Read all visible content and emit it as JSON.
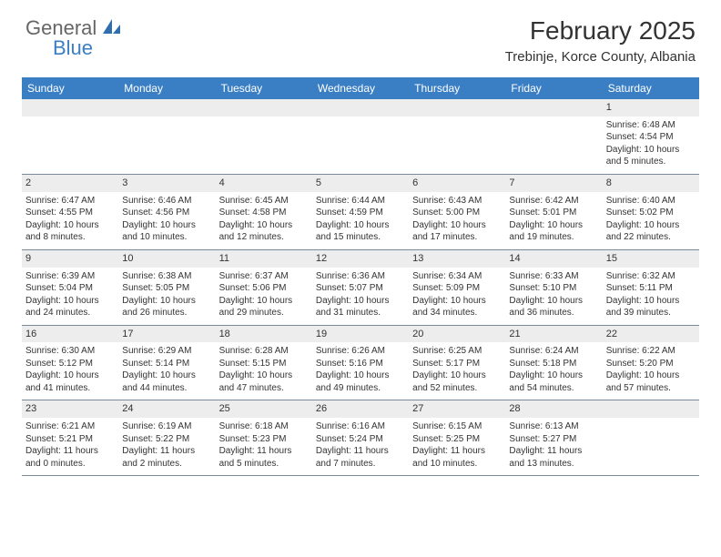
{
  "logo": {
    "text1": "General",
    "text2": "Blue"
  },
  "title": {
    "month": "February 2025",
    "location": "Trebinje, Korce County, Albania"
  },
  "colors": {
    "header_bg": "#3a7fc4",
    "header_text": "#ffffff",
    "strip_bg": "#ededed",
    "border": "#7a8a9a",
    "text": "#333333",
    "logo_gray": "#666666",
    "logo_blue": "#3a7fc4"
  },
  "weekdays": [
    "Sunday",
    "Monday",
    "Tuesday",
    "Wednesday",
    "Thursday",
    "Friday",
    "Saturday"
  ],
  "weeks": [
    [
      {
        "n": "",
        "empty": true
      },
      {
        "n": "",
        "empty": true
      },
      {
        "n": "",
        "empty": true
      },
      {
        "n": "",
        "empty": true
      },
      {
        "n": "",
        "empty": true
      },
      {
        "n": "",
        "empty": true
      },
      {
        "n": "1",
        "sr": "Sunrise: 6:48 AM",
        "ss": "Sunset: 4:54 PM",
        "dl1": "Daylight: 10 hours",
        "dl2": "and 5 minutes."
      }
    ],
    [
      {
        "n": "2",
        "sr": "Sunrise: 6:47 AM",
        "ss": "Sunset: 4:55 PM",
        "dl1": "Daylight: 10 hours",
        "dl2": "and 8 minutes."
      },
      {
        "n": "3",
        "sr": "Sunrise: 6:46 AM",
        "ss": "Sunset: 4:56 PM",
        "dl1": "Daylight: 10 hours",
        "dl2": "and 10 minutes."
      },
      {
        "n": "4",
        "sr": "Sunrise: 6:45 AM",
        "ss": "Sunset: 4:58 PM",
        "dl1": "Daylight: 10 hours",
        "dl2": "and 12 minutes."
      },
      {
        "n": "5",
        "sr": "Sunrise: 6:44 AM",
        "ss": "Sunset: 4:59 PM",
        "dl1": "Daylight: 10 hours",
        "dl2": "and 15 minutes."
      },
      {
        "n": "6",
        "sr": "Sunrise: 6:43 AM",
        "ss": "Sunset: 5:00 PM",
        "dl1": "Daylight: 10 hours",
        "dl2": "and 17 minutes."
      },
      {
        "n": "7",
        "sr": "Sunrise: 6:42 AM",
        "ss": "Sunset: 5:01 PM",
        "dl1": "Daylight: 10 hours",
        "dl2": "and 19 minutes."
      },
      {
        "n": "8",
        "sr": "Sunrise: 6:40 AM",
        "ss": "Sunset: 5:02 PM",
        "dl1": "Daylight: 10 hours",
        "dl2": "and 22 minutes."
      }
    ],
    [
      {
        "n": "9",
        "sr": "Sunrise: 6:39 AM",
        "ss": "Sunset: 5:04 PM",
        "dl1": "Daylight: 10 hours",
        "dl2": "and 24 minutes."
      },
      {
        "n": "10",
        "sr": "Sunrise: 6:38 AM",
        "ss": "Sunset: 5:05 PM",
        "dl1": "Daylight: 10 hours",
        "dl2": "and 26 minutes."
      },
      {
        "n": "11",
        "sr": "Sunrise: 6:37 AM",
        "ss": "Sunset: 5:06 PM",
        "dl1": "Daylight: 10 hours",
        "dl2": "and 29 minutes."
      },
      {
        "n": "12",
        "sr": "Sunrise: 6:36 AM",
        "ss": "Sunset: 5:07 PM",
        "dl1": "Daylight: 10 hours",
        "dl2": "and 31 minutes."
      },
      {
        "n": "13",
        "sr": "Sunrise: 6:34 AM",
        "ss": "Sunset: 5:09 PM",
        "dl1": "Daylight: 10 hours",
        "dl2": "and 34 minutes."
      },
      {
        "n": "14",
        "sr": "Sunrise: 6:33 AM",
        "ss": "Sunset: 5:10 PM",
        "dl1": "Daylight: 10 hours",
        "dl2": "and 36 minutes."
      },
      {
        "n": "15",
        "sr": "Sunrise: 6:32 AM",
        "ss": "Sunset: 5:11 PM",
        "dl1": "Daylight: 10 hours",
        "dl2": "and 39 minutes."
      }
    ],
    [
      {
        "n": "16",
        "sr": "Sunrise: 6:30 AM",
        "ss": "Sunset: 5:12 PM",
        "dl1": "Daylight: 10 hours",
        "dl2": "and 41 minutes."
      },
      {
        "n": "17",
        "sr": "Sunrise: 6:29 AM",
        "ss": "Sunset: 5:14 PM",
        "dl1": "Daylight: 10 hours",
        "dl2": "and 44 minutes."
      },
      {
        "n": "18",
        "sr": "Sunrise: 6:28 AM",
        "ss": "Sunset: 5:15 PM",
        "dl1": "Daylight: 10 hours",
        "dl2": "and 47 minutes."
      },
      {
        "n": "19",
        "sr": "Sunrise: 6:26 AM",
        "ss": "Sunset: 5:16 PM",
        "dl1": "Daylight: 10 hours",
        "dl2": "and 49 minutes."
      },
      {
        "n": "20",
        "sr": "Sunrise: 6:25 AM",
        "ss": "Sunset: 5:17 PM",
        "dl1": "Daylight: 10 hours",
        "dl2": "and 52 minutes."
      },
      {
        "n": "21",
        "sr": "Sunrise: 6:24 AM",
        "ss": "Sunset: 5:18 PM",
        "dl1": "Daylight: 10 hours",
        "dl2": "and 54 minutes."
      },
      {
        "n": "22",
        "sr": "Sunrise: 6:22 AM",
        "ss": "Sunset: 5:20 PM",
        "dl1": "Daylight: 10 hours",
        "dl2": "and 57 minutes."
      }
    ],
    [
      {
        "n": "23",
        "sr": "Sunrise: 6:21 AM",
        "ss": "Sunset: 5:21 PM",
        "dl1": "Daylight: 11 hours",
        "dl2": "and 0 minutes."
      },
      {
        "n": "24",
        "sr": "Sunrise: 6:19 AM",
        "ss": "Sunset: 5:22 PM",
        "dl1": "Daylight: 11 hours",
        "dl2": "and 2 minutes."
      },
      {
        "n": "25",
        "sr": "Sunrise: 6:18 AM",
        "ss": "Sunset: 5:23 PM",
        "dl1": "Daylight: 11 hours",
        "dl2": "and 5 minutes."
      },
      {
        "n": "26",
        "sr": "Sunrise: 6:16 AM",
        "ss": "Sunset: 5:24 PM",
        "dl1": "Daylight: 11 hours",
        "dl2": "and 7 minutes."
      },
      {
        "n": "27",
        "sr": "Sunrise: 6:15 AM",
        "ss": "Sunset: 5:25 PM",
        "dl1": "Daylight: 11 hours",
        "dl2": "and 10 minutes."
      },
      {
        "n": "28",
        "sr": "Sunrise: 6:13 AM",
        "ss": "Sunset: 5:27 PM",
        "dl1": "Daylight: 11 hours",
        "dl2": "and 13 minutes."
      },
      {
        "n": "",
        "empty": true
      }
    ]
  ]
}
